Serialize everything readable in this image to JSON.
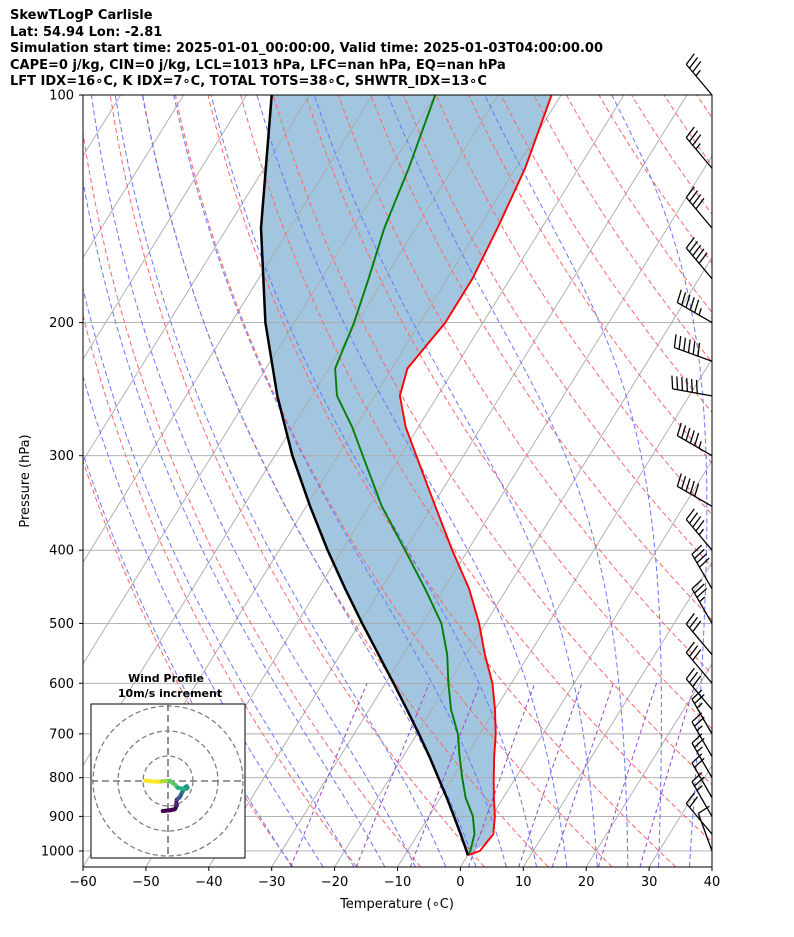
{
  "header": {
    "line1": "SkewTLogP Carlisle",
    "line2": "Lat: 54.94   Lon: -2.81",
    "line3": "Simulation start time: 2025-01-01_00:00:00, Valid time: 2025-01-03T04:00:00.00",
    "line4": "CAPE=0 j/kg, CIN=0 j/kg, LCL=1013 hPa, LFC=nan hPa, EQ=nan hPa",
    "line5": "LFT IDX=16∘C, K IDX=7∘C, TOTAL TOTS=38∘C, SHWTR_IDX=13∘C"
  },
  "colors": {
    "temperature": "#ff0000",
    "dewpoint": "#008000",
    "parcel": "#000000",
    "cape_fill": "#a2c6df",
    "dry_adiabats": "#ff6666",
    "moist_adiabats": "#6677ff",
    "mixing_ratio": "#9944cc",
    "isotherms": "#aaaaaa"
  },
  "chart_data": {
    "type": "line",
    "xlabel": "Temperature (∘C)",
    "ylabel": "Pressure (hPa)",
    "xlim": [
      -60,
      40
    ],
    "ylim": [
      1050,
      100
    ],
    "y_scale": "log",
    "skew": true,
    "grid": true,
    "x_ticks": [
      -60,
      -50,
      -40,
      -30,
      -20,
      -10,
      0,
      10,
      20,
      30,
      40
    ],
    "y_ticks": [
      1000,
      900,
      800,
      700,
      600,
      500,
      400,
      300,
      200,
      100
    ],
    "series": [
      {
        "key": "temperature",
        "p": [
          1013,
          1000,
          950,
          900,
          850,
          800,
          750,
          700,
          650,
          600,
          550,
          500,
          450,
          400,
          350,
          300,
          275,
          250,
          230,
          200,
          175,
          150,
          125,
          100
        ],
        "t": [
          0.0,
          1.5,
          2.0,
          0.5,
          -1.5,
          -3.5,
          -5.5,
          -7.5,
          -10.0,
          -13.0,
          -17.0,
          -21.0,
          -26.0,
          -32.5,
          -39.5,
          -47.5,
          -52.0,
          -56.0,
          -57.5,
          -56.0,
          -56.0,
          -57.0,
          -58.5,
          -61.5
        ]
      },
      {
        "key": "dewpoint",
        "p": [
          1013,
          1000,
          950,
          900,
          850,
          800,
          750,
          700,
          650,
          600,
          550,
          500,
          450,
          400,
          350,
          300,
          275,
          250,
          230,
          200,
          175,
          150,
          125,
          100
        ],
        "t": [
          0.0,
          0.0,
          -1.0,
          -3.0,
          -6.0,
          -8.5,
          -11.0,
          -13.5,
          -17.0,
          -20.0,
          -23.0,
          -27.0,
          -33.0,
          -40.0,
          -48.0,
          -56.0,
          -60.5,
          -66.0,
          -69.0,
          -70.5,
          -72.5,
          -75.0,
          -77.0,
          -80.0
        ]
      },
      {
        "key": "parcel",
        "p": [
          1013,
          1000,
          950,
          900,
          850,
          800,
          750,
          700,
          650,
          600,
          550,
          500,
          450,
          400,
          350,
          300,
          250,
          200,
          150,
          100
        ],
        "t": [
          0.0,
          -0.6,
          -3.2,
          -6.0,
          -9.0,
          -12.3,
          -15.8,
          -19.7,
          -24.0,
          -28.7,
          -33.9,
          -39.6,
          -45.7,
          -52.3,
          -59.4,
          -67.2,
          -75.5,
          -84.6,
          -94.6,
          -106.0
        ]
      }
    ],
    "wind_barbs": {
      "p": [
        1000,
        950,
        900,
        850,
        800,
        750,
        700,
        650,
        600,
        550,
        500,
        450,
        400,
        350,
        300,
        250,
        225,
        200,
        175,
        150,
        125,
        100
      ],
      "speed_kt": [
        10,
        20,
        25,
        20,
        25,
        25,
        25,
        30,
        30,
        30,
        35,
        40,
        45,
        50,
        55,
        60,
        60,
        55,
        50,
        40,
        35,
        35
      ],
      "dir_deg": [
        340,
        320,
        330,
        330,
        330,
        330,
        330,
        320,
        320,
        320,
        330,
        330,
        320,
        300,
        300,
        280,
        290,
        300,
        320,
        320,
        320,
        320
      ]
    },
    "hodograph": {
      "title": "Wind Profile",
      "subtitle": "10m/s increment",
      "u": [
        -2.1,
        0.8,
        2.7,
        3.1,
        3.6,
        3.3,
        3.5,
        4.0,
        4.6,
        5.0,
        5.6,
        6.3,
        7.0,
        7.5,
        7.8,
        7.5,
        6.8,
        5.6,
        3.9,
        2.9,
        1.6,
        0.8,
        -0.8,
        -1.5,
        -2.2,
        -3.9,
        -5.9,
        -8.3,
        -9.0
      ],
      "v": [
        -12.0,
        -11.7,
        -11.3,
        -10.6,
        -9.7,
        -9.1,
        -7.5,
        -7.0,
        -6.6,
        -5.9,
        -4.6,
        -3.3,
        -2.4,
        -2.1,
        -2.7,
        -3.0,
        -3.2,
        -3.0,
        -2.7,
        -1.6,
        -0.6,
        0.0,
        0.0,
        0.0,
        -0.1,
        -0.3,
        -0.2,
        0.0,
        0.2
      ]
    }
  }
}
